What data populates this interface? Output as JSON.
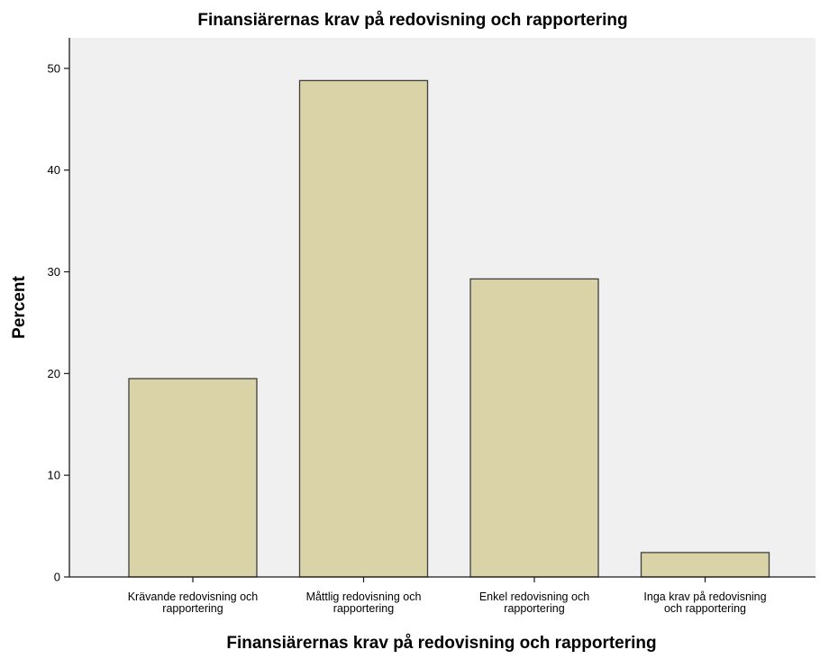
{
  "chart_data": {
    "type": "bar",
    "title": "Finansiärernas krav på redovisning och rapportering",
    "xlabel": "Finansiärernas krav på redovisning och rapportering",
    "ylabel": "Percent",
    "categories": [
      [
        "Krävande redovisning och",
        "rapportering"
      ],
      [
        "Måttlig redovisning och",
        "rapportering"
      ],
      [
        "Enkel redovisning och",
        "rapportering"
      ],
      [
        "Inga krav på redovisning",
        "och rapportering"
      ]
    ],
    "values": [
      19.5,
      48.8,
      29.3,
      2.4
    ],
    "ylim": [
      0,
      53
    ],
    "yticks": [
      0,
      10,
      20,
      30,
      40,
      50
    ],
    "grid": false,
    "legend": "none",
    "colors": {
      "bar_fill": "#d9d3a7",
      "bar_stroke": "#3f3f3f",
      "plot_background": "#f0f0f0",
      "axis": "#1a1a1a"
    }
  }
}
